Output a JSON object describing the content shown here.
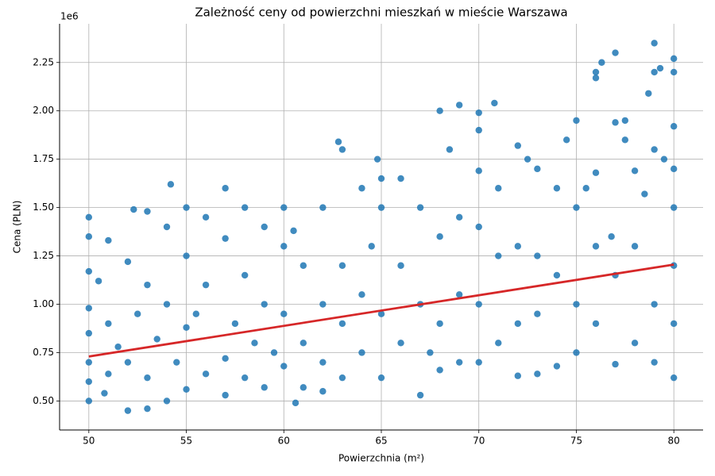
{
  "chart_data": {
    "type": "scatter",
    "title": "Zależność ceny od powierzchni mieszkań w mieście Warszawa",
    "x_label": "Powierzchnia (m²)",
    "y_label": "Cena (PLN)",
    "y_offset_label": "1e6",
    "xlim": [
      48.5,
      81.5
    ],
    "ylim": [
      350000,
      2450000
    ],
    "xticks": [
      50,
      55,
      60,
      65,
      70,
      75,
      80
    ],
    "yticks": [
      {
        "value": 500000,
        "label": "0.50"
      },
      {
        "value": 750000,
        "label": "0.75"
      },
      {
        "value": 1000000,
        "label": "1.00"
      },
      {
        "value": 1250000,
        "label": "1.25"
      },
      {
        "value": 1500000,
        "label": "1.50"
      },
      {
        "value": 1750000,
        "label": "1.75"
      },
      {
        "value": 2000000,
        "label": "2.00"
      },
      {
        "value": 2250000,
        "label": "2.25"
      }
    ],
    "grid": true,
    "series": [
      {
        "type": "scatter",
        "color": "#1f77b4",
        "x": [
          50,
          50,
          50,
          50,
          50,
          50,
          50,
          50,
          50.5,
          50.8,
          51,
          51,
          51,
          51.5,
          52,
          52,
          52,
          52.3,
          52.5,
          53,
          53,
          53,
          53,
          53.5,
          54,
          54,
          54,
          54.2,
          54.5,
          55,
          55,
          55,
          55,
          55.5,
          56,
          56,
          56,
          57,
          57,
          57,
          57,
          57.5,
          58,
          58,
          58,
          58.5,
          59,
          59,
          59,
          59.5,
          60,
          60,
          60,
          60,
          60.6,
          60.5,
          61,
          61,
          61,
          62,
          62,
          62,
          62,
          62.8,
          63,
          63,
          63,
          63,
          64,
          64,
          64,
          64.5,
          64.8,
          65,
          65,
          65,
          65,
          66,
          66,
          66,
          67,
          67,
          67,
          67.5,
          68,
          68,
          68,
          68,
          68.5,
          69,
          69,
          69,
          69,
          70,
          70,
          70,
          70,
          70,
          70,
          70.8,
          71,
          71,
          71,
          72,
          72,
          72,
          72,
          72.5,
          73,
          73,
          73,
          73,
          74,
          74,
          74,
          74.5,
          75,
          75,
          75,
          75,
          75.5,
          76,
          76,
          76,
          76,
          76,
          76.3,
          76.8,
          77,
          77,
          77,
          77,
          77.5,
          77.5,
          78,
          78,
          78,
          78.5,
          78.7,
          79,
          79,
          79,
          79,
          79,
          79.3,
          79.5,
          80,
          80,
          80,
          80,
          80,
          80,
          80,
          80
        ],
        "values": [
          1450000,
          1350000,
          1170000,
          980000,
          850000,
          700000,
          600000,
          500000,
          1120000,
          540000,
          1330000,
          900000,
          640000,
          780000,
          1220000,
          450000,
          700000,
          1490000,
          950000,
          1480000,
          1100000,
          620000,
          460000,
          820000,
          1400000,
          500000,
          1000000,
          1620000,
          700000,
          1500000,
          1250000,
          880000,
          560000,
          950000,
          1450000,
          640000,
          1100000,
          1600000,
          1340000,
          720000,
          530000,
          900000,
          1500000,
          1150000,
          620000,
          800000,
          1400000,
          1000000,
          570000,
          750000,
          1500000,
          1300000,
          950000,
          680000,
          490000,
          1380000,
          1200000,
          800000,
          570000,
          1500000,
          1000000,
          700000,
          550000,
          1840000,
          1800000,
          1200000,
          900000,
          620000,
          1600000,
          1050000,
          750000,
          1300000,
          1750000,
          1650000,
          1500000,
          950000,
          620000,
          1650000,
          1200000,
          800000,
          1500000,
          1000000,
          530000,
          750000,
          2000000,
          1350000,
          900000,
          660000,
          1800000,
          2030000,
          1450000,
          1050000,
          700000,
          1990000,
          1900000,
          1690000,
          1400000,
          1000000,
          700000,
          2040000,
          1600000,
          1250000,
          800000,
          1820000,
          1300000,
          900000,
          630000,
          1750000,
          1700000,
          1250000,
          950000,
          640000,
          1600000,
          1150000,
          680000,
          1850000,
          1950000,
          1500000,
          1000000,
          750000,
          1600000,
          2200000,
          2170000,
          1680000,
          1300000,
          900000,
          2250000,
          1350000,
          2300000,
          1940000,
          1150000,
          690000,
          1950000,
          1850000,
          1690000,
          1300000,
          800000,
          1570000,
          2090000,
          2350000,
          2200000,
          1800000,
          1000000,
          700000,
          2220000,
          1750000,
          2270000,
          2200000,
          1920000,
          1700000,
          1500000,
          1200000,
          900000,
          620000
        ]
      },
      {
        "type": "line",
        "color": "#d62728",
        "x": [
          50,
          80
        ],
        "values": [
          730000,
          1205000
        ]
      }
    ]
  }
}
